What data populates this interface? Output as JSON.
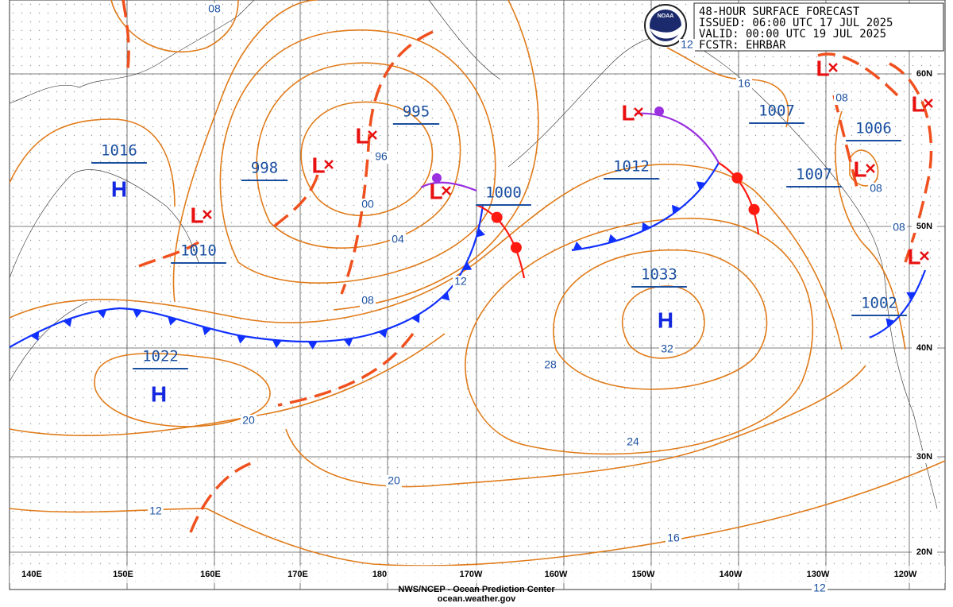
{
  "header": {
    "lines": [
      "48-HOUR SURFACE FORECAST",
      "ISSUED: 06:00 UTC 17 JUL 2025",
      "VALID:  00:00 UTC 19 JUL 2025",
      "FCSTR: EHRBAR"
    ]
  },
  "logo": "NOAA",
  "footer": {
    "lines": [
      "NWS/NCEP - Ocean Prediction Center",
      "ocean.weather.gov"
    ]
  },
  "longitude_labels": [
    "140E",
    "150E",
    "160E",
    "170E",
    "180",
    "170W",
    "160W",
    "150W",
    "140W",
    "130W",
    "120W"
  ],
  "latitude_labels": [
    "60N",
    "50N",
    "40N",
    "30N",
    "20N"
  ],
  "systems": [
    {
      "symbol": "H",
      "pressure": "1016"
    },
    {
      "symbol": "L",
      "pressure": "998"
    },
    {
      "symbol": "L",
      "pressure": "995"
    },
    {
      "symbol": "L",
      "pressure": "1000"
    },
    {
      "symbol": "L",
      "pressure": "1010"
    },
    {
      "symbol": "H",
      "pressure": "1022"
    },
    {
      "symbol": "L",
      "pressure": "1012"
    },
    {
      "symbol": "H",
      "pressure": "1033"
    },
    {
      "symbol": "L",
      "pressure": "1007"
    },
    {
      "symbol": "L",
      "pressure": "1006"
    },
    {
      "symbol": "L",
      "pressure": "1007"
    },
    {
      "symbol": "L",
      "pressure": "1002"
    }
  ],
  "isobar_labels": [
    "08",
    "12",
    "16",
    "96",
    "00",
    "04",
    "08",
    "12",
    "28",
    "32",
    "24",
    "20",
    "20",
    "12",
    "16",
    "08",
    "08",
    "08",
    "12"
  ]
}
